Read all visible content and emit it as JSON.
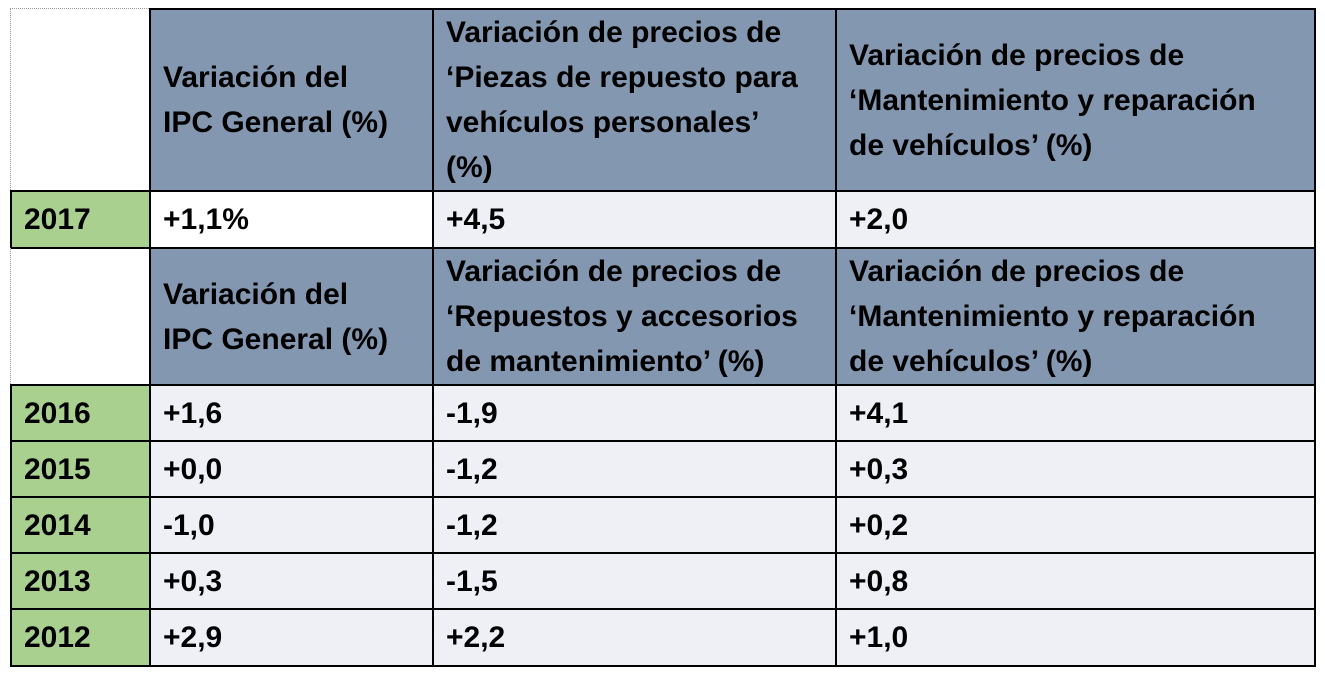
{
  "table": {
    "header1": {
      "col1": "Variación del\nIPC General (%)",
      "col2": "Variación de precios de\n‘Piezas de repuesto para\nvehículos personales’\n(%)",
      "col3": "Variación de precios de\n‘Mantenimiento y reparación\nde vehículos’ (%)"
    },
    "row2017": {
      "year": "2017",
      "v1": "+1,1%",
      "v2": "+4,5",
      "v3": "+2,0"
    },
    "header2": {
      "col1": "Variación del\nIPC General (%)",
      "col2": "Variación de precios de\n‘Repuestos y accesorios\nde mantenimiento’ (%)",
      "col3": "Variación de precios de\n‘Mantenimiento y reparación\nde vehículos’ (%)"
    },
    "rows": [
      {
        "year": "2016",
        "v1": "+1,6",
        "v2": "-1,9",
        "v3": "+4,1"
      },
      {
        "year": "2015",
        "v1": "+0,0",
        "v2": "-1,2",
        "v3": "+0,3"
      },
      {
        "year": "2014",
        "v1": "-1,0",
        "v2": "-1,2",
        "v3": "+0,2"
      },
      {
        "year": "2013",
        "v1": "+0,3",
        "v2": "-1,5",
        "v3": "+0,8"
      },
      {
        "year": "2012",
        "v1": "+2,9",
        "v2": "+2,2",
        "v3": "+1,0"
      }
    ],
    "colors": {
      "header": "#8497b0",
      "year": "#a9d08e",
      "value": "#eef0f6"
    }
  }
}
